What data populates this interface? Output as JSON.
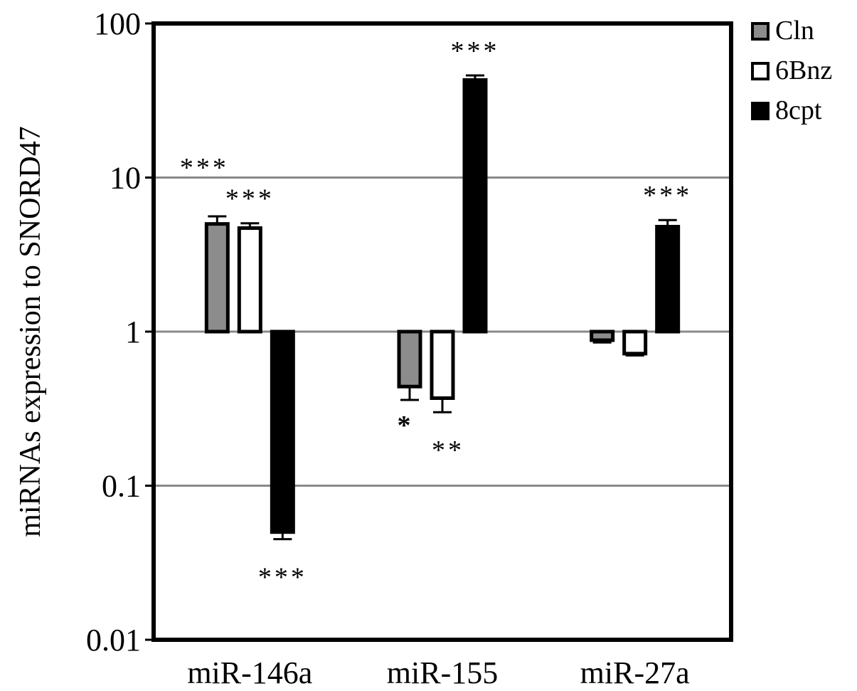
{
  "chart_data": {
    "type": "bar",
    "ylabel": "miRNAs expression to SNORD47",
    "xlabel": "",
    "yscale": "log",
    "ylim": [
      0.01,
      100
    ],
    "yticks": [
      "0.01",
      "0.1",
      "1",
      "10",
      "100"
    ],
    "baseline": 1,
    "grid": true,
    "legend_position": "top-right-outside",
    "categories": [
      "miR-146a",
      "miR-155",
      "miR-27a"
    ],
    "series": [
      {
        "name": "Cln",
        "color": "#8c8c8c",
        "values": [
          5.0,
          0.44,
          0.88
        ],
        "error": [
          0.6,
          0.08,
          0.03
        ],
        "significance": [
          "",
          "*",
          ""
        ]
      },
      {
        "name": "6Bnz",
        "color": "#ffffff",
        "values": [
          4.7,
          0.37,
          0.72
        ],
        "error": [
          0.35,
          0.07,
          0.02
        ],
        "significance": [
          "***",
          "**",
          ""
        ]
      },
      {
        "name": "8cpt",
        "color": "#000000",
        "values": [
          0.05,
          43,
          4.8
        ],
        "error": [
          0.005,
          3,
          0.5
        ],
        "significance": [
          "***",
          "***",
          "***"
        ]
      }
    ],
    "annotations": [
      {
        "text": "***",
        "category": "miR-146a",
        "note": "above group"
      }
    ]
  }
}
